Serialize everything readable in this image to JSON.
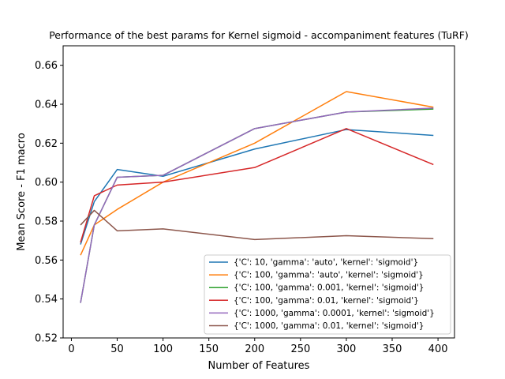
{
  "chart_data": {
    "type": "line",
    "title": "Performance of the best params for Kernel sigmoid - accompaniment features (TuRF)",
    "xlabel": "Number of Features",
    "ylabel": "Mean Score - F1 macro",
    "xlim": [
      -9,
      418
    ],
    "ylim": [
      0.52,
      0.67
    ],
    "xticks": [
      0,
      50,
      100,
      150,
      200,
      250,
      300,
      350,
      400
    ],
    "yticks": [
      0.52,
      0.54,
      0.56,
      0.58,
      0.6,
      0.62,
      0.64,
      0.66
    ],
    "grid": false,
    "legend_position": "lower right",
    "x": [
      10,
      25,
      50,
      100,
      200,
      300,
      395
    ],
    "series": [
      {
        "name": "{'C': 10, 'gamma': 'auto', 'kernel': 'sigmoid'}",
        "color": "#1f77b4",
        "values": [
          0.568,
          0.59,
          0.6065,
          0.603,
          0.617,
          0.627,
          0.624
        ]
      },
      {
        "name": "{'C': 100, 'gamma': 'auto', 'kernel': 'sigmoid'}",
        "color": "#ff7f0e",
        "values": [
          0.5625,
          0.578,
          0.586,
          0.6,
          0.62,
          0.6465,
          0.6385
        ]
      },
      {
        "name": "{'C': 100, 'gamma': 0.001, 'kernel': 'sigmoid'}",
        "color": "#2ca02c",
        "values": [
          0.538,
          0.578,
          0.6025,
          0.6035,
          0.6275,
          0.636,
          0.6375
        ]
      },
      {
        "name": "{'C': 100, 'gamma': 0.01, 'kernel': 'sigmoid'}",
        "color": "#d62728",
        "values": [
          0.569,
          0.593,
          0.5985,
          0.6,
          0.6075,
          0.6275,
          0.609
        ]
      },
      {
        "name": "{'C': 1000, 'gamma': 0.0001, 'kernel': 'sigmoid'}",
        "color": "#9467bd",
        "values": [
          0.538,
          0.578,
          0.6025,
          0.6035,
          0.6275,
          0.636,
          0.638
        ]
      },
      {
        "name": "{'C': 1000, 'gamma': 0.01, 'kernel': 'sigmoid'}",
        "color": "#8c564b",
        "values": [
          0.578,
          0.5855,
          0.575,
          0.576,
          0.5705,
          0.5725,
          0.571
        ]
      }
    ]
  }
}
